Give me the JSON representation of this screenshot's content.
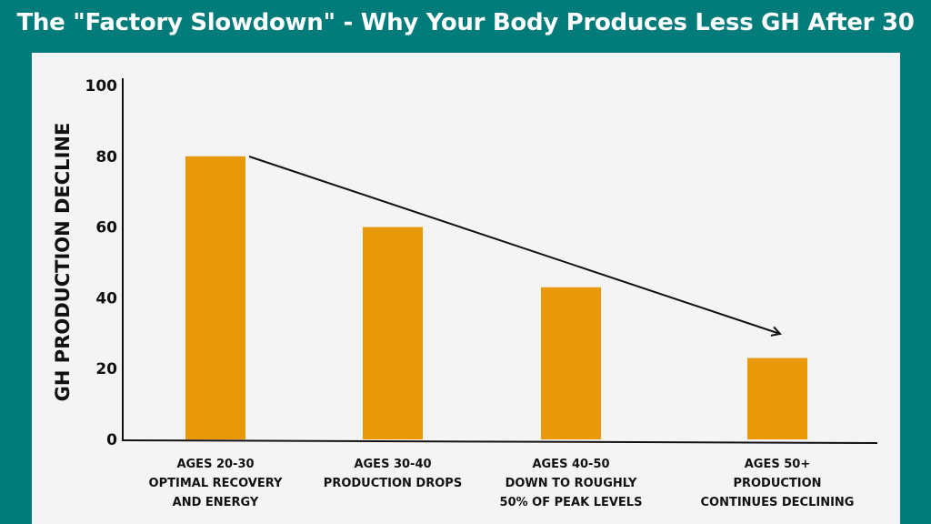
{
  "chart_data": {
    "type": "bar",
    "title": "The \"Factory Slowdown\" - Why Your Body Produces Less GH After 30",
    "xlabel": "",
    "ylabel": "GH PRODUCTION DECLINE",
    "ylim": [
      0,
      100
    ],
    "yticks": [
      "0",
      "20",
      "40",
      "60",
      "80",
      "100"
    ],
    "categories": [
      [
        "AGES 20-30",
        "OPTIMAL RECOVERY",
        "AND ENERGY"
      ],
      [
        "AGES 30-40",
        "PRODUCTION DROPS"
      ],
      [
        "AGES 40-50",
        "DOWN TO ROUGHLY",
        "50% OF PEAK LEVELS"
      ],
      [
        "AGES 50+",
        "PRODUCTION",
        "CONTINUES DECLINING"
      ]
    ],
    "values": [
      80,
      60,
      43,
      23
    ],
    "bar_color": "#e8990a",
    "annotation": "downward trend arrow from first bar to last bar",
    "grid": false,
    "legend": "none"
  },
  "colors": {
    "background": "#027b7b",
    "panel": "#f4f4f4"
  }
}
